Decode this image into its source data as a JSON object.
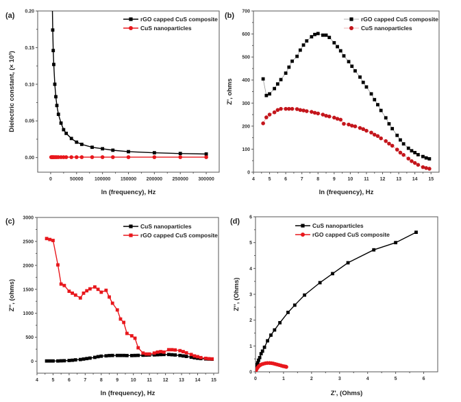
{
  "chart_data": [
    {
      "id": "a",
      "panel_label": "(a)",
      "type": "line",
      "title": "",
      "xlabel": "ln (frequency), Hz",
      "ylabel": "Dielectric constant, (× 10³)",
      "xlim": [
        -25000,
        325000
      ],
      "ylim": [
        -0.02,
        0.2
      ],
      "xticks": [
        0,
        50000,
        100000,
        150000,
        200000,
        250000,
        300000
      ],
      "xtick_labels": [
        "0",
        "50000",
        "100000",
        "150000",
        "200000",
        "250000",
        "300000"
      ],
      "yticks": [
        0.0,
        0.05,
        0.1,
        0.15,
        0.2
      ],
      "ytick_labels": [
        "0.00",
        "0.05",
        "0.10",
        "0.15",
        "0.20"
      ],
      "legend_position": "top-right",
      "series": [
        {
          "name": "rGO capped CuS composite",
          "color": "#000000",
          "marker": "square",
          "line": "solid",
          "x": [
            3000,
            4000,
            5000,
            6000,
            8000,
            10000,
            12000,
            15000,
            20000,
            25000,
            30000,
            40000,
            50000,
            60000,
            80000,
            100000,
            120000,
            150000,
            200000,
            250000,
            300000
          ],
          "y": [
            0.22,
            0.174,
            0.146,
            0.127,
            0.1,
            0.083,
            0.071,
            0.059,
            0.047,
            0.038,
            0.033,
            0.026,
            0.021,
            0.018,
            0.014,
            0.012,
            0.01,
            0.008,
            0.0065,
            0.0055,
            0.0048
          ]
        },
        {
          "name": "CuS nanoparticles",
          "color": "#e8171c",
          "marker": "circle",
          "line": "solid",
          "x": [
            1000,
            2000,
            3000,
            4000,
            5000,
            6000,
            8000,
            10000,
            12000,
            15000,
            20000,
            25000,
            30000,
            40000,
            50000,
            60000,
            80000,
            100000,
            120000,
            150000,
            200000,
            250000,
            300000
          ],
          "y": [
            0.0005,
            0.0005,
            0.0005,
            0.0005,
            0.0005,
            0.0005,
            0.0005,
            0.0005,
            0.0005,
            0.0005,
            0.0005,
            0.0005,
            0.0005,
            0.0005,
            0.0005,
            0.0005,
            0.0005,
            0.0005,
            0.0005,
            0.0005,
            0.0005,
            0.0005,
            0.0005
          ]
        }
      ]
    },
    {
      "id": "b",
      "panel_label": "(b)",
      "type": "line",
      "title": "",
      "xlabel": "ln (frequency), Hz",
      "ylabel": "Z', ohms",
      "xlim": [
        4,
        15.5
      ],
      "ylim": [
        0,
        700
      ],
      "xticks": [
        4,
        5,
        6,
        7,
        8,
        9,
        10,
        11,
        12,
        13,
        14,
        15
      ],
      "xtick_labels": [
        "4",
        "5",
        "6",
        "7",
        "8",
        "9",
        "10",
        "11",
        "12",
        "13",
        "14",
        "15"
      ],
      "yticks": [
        0,
        100,
        200,
        300,
        400,
        500,
        600,
        700
      ],
      "ytick_labels": [
        "0",
        "100",
        "200",
        "300",
        "400",
        "500",
        "600",
        "700"
      ],
      "legend_position": "top-right",
      "series": [
        {
          "name": "rGO capped CuS composite",
          "color": "#000000",
          "marker": "square",
          "line": "thin-gray",
          "x": [
            4.6,
            4.8,
            5.0,
            5.3,
            5.5,
            5.7,
            6.0,
            6.2,
            6.4,
            6.7,
            6.9,
            7.1,
            7.3,
            7.6,
            7.8,
            8.0,
            8.3,
            8.5,
            8.7,
            9.0,
            9.2,
            9.4,
            9.6,
            9.9,
            10.1,
            10.3,
            10.6,
            10.8,
            11.0,
            11.3,
            11.5,
            11.7,
            11.9,
            12.2,
            12.4,
            12.6,
            12.9,
            13.1,
            13.3,
            13.6,
            13.8,
            14.0,
            14.2,
            14.5,
            14.7,
            14.9
          ],
          "y": [
            405,
            333,
            340,
            363,
            383,
            402,
            430,
            456,
            482,
            503,
            530,
            552,
            570,
            588,
            598,
            602,
            595,
            595,
            585,
            562,
            545,
            527,
            505,
            480,
            460,
            440,
            413,
            390,
            370,
            340,
            315,
            293,
            268,
            236,
            210,
            189,
            160,
            140,
            123,
            104,
            93,
            85,
            76,
            68,
            62,
            58
          ]
        },
        {
          "name": "CuS nanoparticles",
          "color": "#c4161c",
          "marker": "circle",
          "line": "thin-pink",
          "x": [
            4.6,
            4.8,
            5.0,
            5.3,
            5.5,
            5.7,
            6.0,
            6.2,
            6.4,
            6.7,
            6.9,
            7.1,
            7.3,
            7.6,
            7.8,
            8.0,
            8.3,
            8.5,
            8.7,
            9.0,
            9.2,
            9.4,
            9.6,
            9.9,
            10.1,
            10.3,
            10.6,
            10.8,
            11.0,
            11.3,
            11.5,
            11.7,
            11.9,
            12.2,
            12.4,
            12.6,
            12.9,
            13.1,
            13.3,
            13.6,
            13.8,
            14.0,
            14.2,
            14.5,
            14.7,
            14.9
          ],
          "y": [
            212,
            238,
            250,
            260,
            270,
            275,
            275,
            275,
            275,
            274,
            270,
            268,
            265,
            262,
            258,
            255,
            250,
            245,
            242,
            237,
            232,
            228,
            210,
            207,
            202,
            199,
            192,
            187,
            180,
            172,
            163,
            157,
            147,
            135,
            124,
            115,
            98,
            85,
            75,
            59,
            48,
            40,
            32,
            22,
            18,
            15
          ]
        }
      ]
    },
    {
      "id": "c",
      "panel_label": "(c)",
      "type": "line",
      "title": "",
      "xlabel": "ln (frequency), Hz",
      "ylabel": "Z'', (ohms)",
      "xlim": [
        4,
        15.3
      ],
      "ylim": [
        -250,
        3000
      ],
      "xticks": [
        4,
        5,
        6,
        7,
        8,
        9,
        10,
        11,
        12,
        13,
        14,
        15
      ],
      "xtick_labels": [
        "4",
        "5",
        "6",
        "7",
        "8",
        "9",
        "10",
        "11",
        "12",
        "13",
        "14",
        "15"
      ],
      "yticks": [
        0,
        500,
        1000,
        1500,
        2000,
        2500,
        3000
      ],
      "ytick_labels": [
        "0",
        "500",
        "1000",
        "1500",
        "2000",
        "2500",
        "3000"
      ],
      "legend_position": "top-right",
      "series": [
        {
          "name": "CuS nanoparticles",
          "color": "#000000",
          "marker": "square",
          "line": "solid",
          "x": [
            4.6,
            4.8,
            5.0,
            5.3,
            5.5,
            5.7,
            6.0,
            6.2,
            6.4,
            6.7,
            6.9,
            7.1,
            7.3,
            7.6,
            7.8,
            8.0,
            8.3,
            8.5,
            8.7,
            9.0,
            9.2,
            9.4,
            9.6,
            9.9,
            10.1,
            10.3,
            10.6,
            10.8,
            11.0,
            11.3,
            11.5,
            11.7,
            11.9,
            12.2,
            12.4,
            12.6,
            12.9,
            13.1,
            13.3,
            13.6,
            13.8,
            14.0,
            14.2,
            14.5,
            14.7,
            14.9
          ],
          "y": [
            5,
            5,
            5,
            5,
            8,
            10,
            15,
            20,
            28,
            35,
            45,
            55,
            65,
            80,
            95,
            105,
            112,
            118,
            120,
            120,
            120,
            120,
            118,
            118,
            120,
            122,
            125,
            128,
            130,
            132,
            135,
            138,
            140,
            140,
            135,
            130,
            120,
            110,
            100,
            85,
            72,
            62,
            55,
            48,
            45,
            42
          ]
        },
        {
          "name": "rGO capped CuS composite",
          "color": "#e8171c",
          "marker": "square",
          "line": "solid",
          "x": [
            4.6,
            4.8,
            5.0,
            5.3,
            5.5,
            5.7,
            6.0,
            6.2,
            6.4,
            6.7,
            6.9,
            7.1,
            7.3,
            7.6,
            7.8,
            8.0,
            8.3,
            8.5,
            8.7,
            9.0,
            9.2,
            9.4,
            9.6,
            9.9,
            10.1,
            10.3,
            10.6,
            10.8,
            11.0,
            11.3,
            11.5,
            11.7,
            11.9,
            12.2,
            12.4,
            12.6,
            12.9,
            13.1,
            13.3,
            13.6,
            13.8,
            14.0,
            14.2,
            14.5,
            14.7,
            14.9
          ],
          "y": [
            2560,
            2540,
            2520,
            2010,
            1610,
            1580,
            1460,
            1420,
            1380,
            1320,
            1420,
            1470,
            1510,
            1550,
            1500,
            1440,
            1480,
            1340,
            1210,
            1070,
            880,
            810,
            580,
            530,
            480,
            280,
            170,
            150,
            150,
            170,
            190,
            200,
            190,
            240,
            240,
            235,
            220,
            200,
            175,
            140,
            110,
            95,
            75,
            60,
            52,
            48
          ]
        }
      ]
    },
    {
      "id": "d",
      "panel_label": "(d)",
      "type": "line",
      "title": "",
      "xlabel": "Z', (Ohms)",
      "ylabel": "Z'', (Ohms)",
      "xlim": [
        0,
        6.5
      ],
      "ylim": [
        0,
        6
      ],
      "xticks": [
        0,
        1,
        2,
        3,
        4,
        5,
        6
      ],
      "xtick_labels": [
        "0",
        "1",
        "2",
        "3",
        "4",
        "5",
        "6"
      ],
      "yticks": [
        0,
        1,
        2,
        3,
        4,
        5,
        6
      ],
      "ytick_labels": [
        "0",
        "1",
        "2",
        "3",
        "4",
        "5",
        "6"
      ],
      "legend_position": "top-left",
      "series": [
        {
          "name": "CuS nanoparticles",
          "color": "#000000",
          "marker": "square",
          "line": "solid",
          "x": [
            0.0,
            0.02,
            0.04,
            0.06,
            0.08,
            0.11,
            0.15,
            0.2,
            0.25,
            0.32,
            0.43,
            0.55,
            0.68,
            0.87,
            1.16,
            1.4,
            1.75,
            2.3,
            2.75,
            3.3,
            4.22,
            5.0,
            5.73
          ],
          "y": [
            0.0,
            0.12,
            0.2,
            0.28,
            0.35,
            0.45,
            0.55,
            0.7,
            0.8,
            0.95,
            1.2,
            1.42,
            1.62,
            1.9,
            2.3,
            2.58,
            2.97,
            3.45,
            3.8,
            4.22,
            4.72,
            5.0,
            5.4
          ]
        },
        {
          "name": "rGO capped CuS composite",
          "color": "#e8171c",
          "marker": "circle",
          "line": "solid",
          "x": [
            0.0,
            0.02,
            0.05,
            0.08,
            0.12,
            0.17,
            0.22,
            0.28,
            0.35,
            0.42,
            0.5,
            0.57,
            0.64,
            0.71,
            0.78,
            0.85,
            0.92,
            0.98,
            1.03,
            1.08,
            1.1
          ],
          "y": [
            0.0,
            0.06,
            0.12,
            0.17,
            0.22,
            0.26,
            0.29,
            0.31,
            0.33,
            0.34,
            0.34,
            0.335,
            0.32,
            0.3,
            0.28,
            0.26,
            0.24,
            0.22,
            0.21,
            0.2,
            0.19
          ]
        }
      ]
    }
  ]
}
